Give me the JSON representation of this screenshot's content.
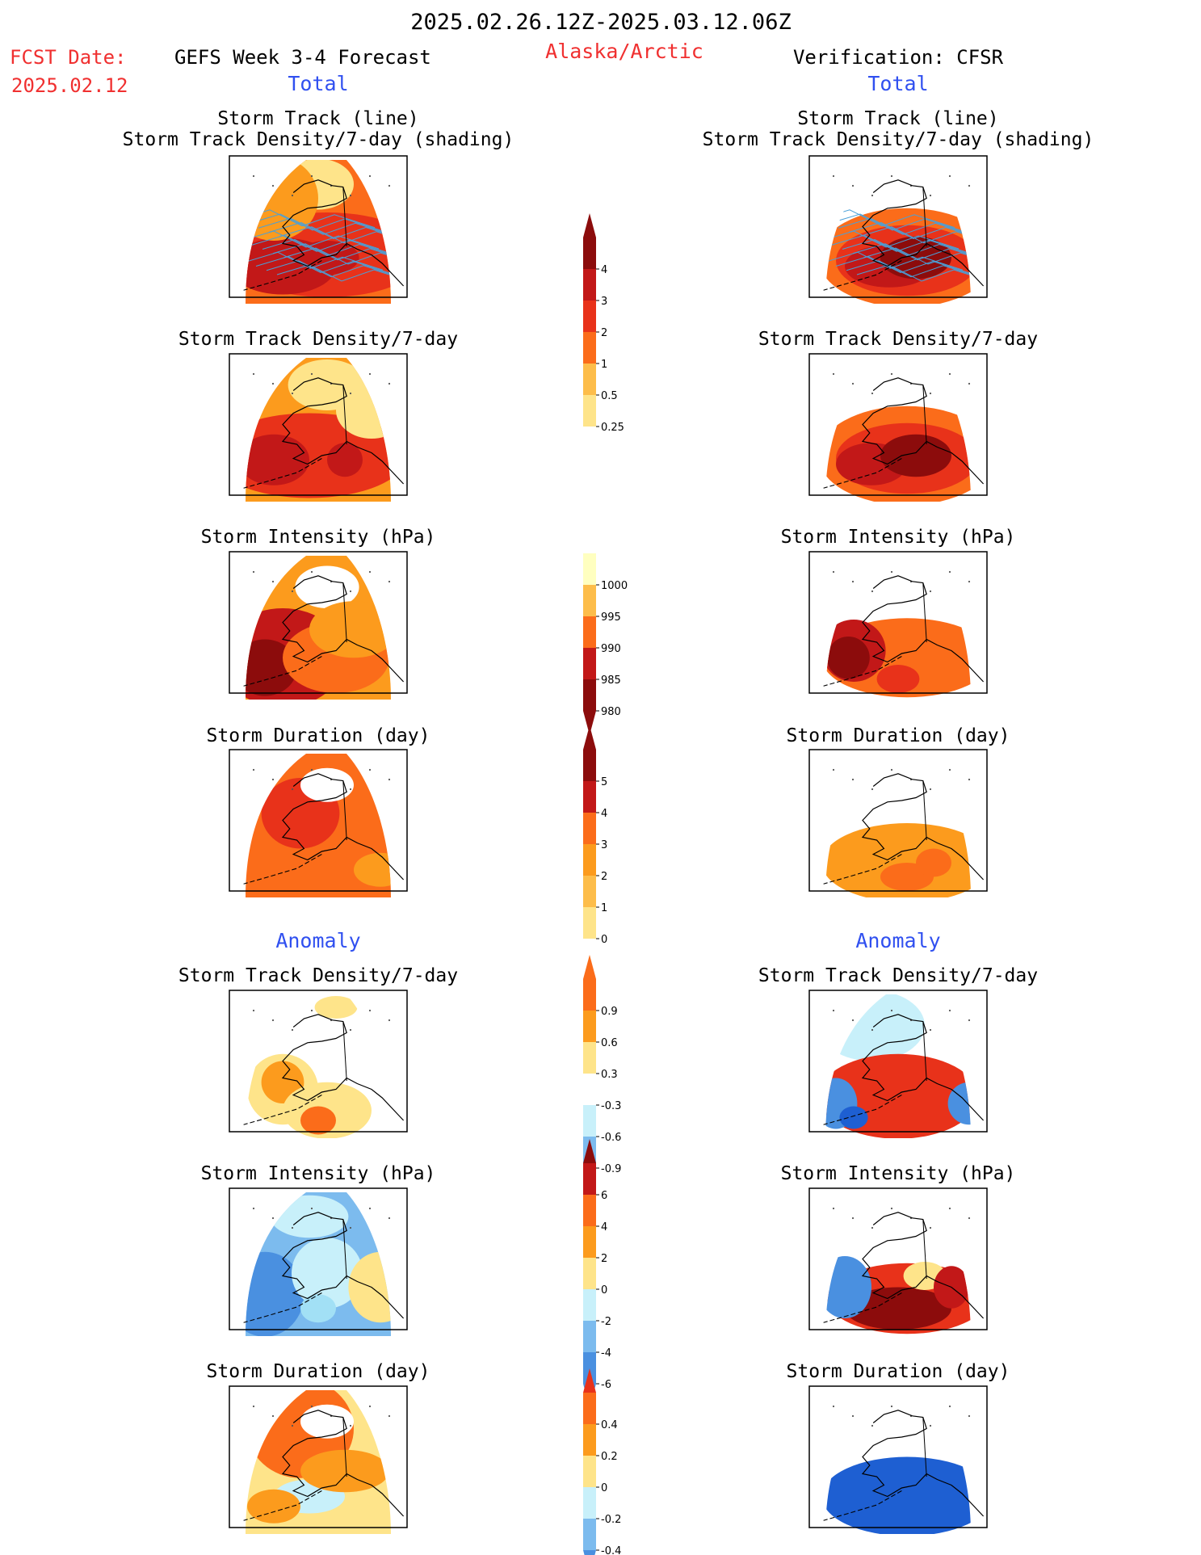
{
  "header": {
    "period": "2025.02.26.12Z-2025.03.12.06Z",
    "fcst_label": "FCST Date:",
    "fcst_date": "2025.02.12",
    "left_title": "GEFS Week 3-4 Forecast",
    "region": "Alaska/Arctic",
    "right_title": "Verification: CFSR",
    "left_total": "Total",
    "right_total": "Total",
    "left_anomaly": "Anomaly",
    "right_anomaly": "Anomaly"
  },
  "titles": {
    "p1_line1": "Storm Track (line)",
    "p1_line2": "Storm Track Density/7-day (shading)",
    "density": "Storm Track Density/7-day",
    "intensity": "Storm Intensity (hPa)",
    "duration": "Storm Duration (day)"
  },
  "colors": {
    "warm": [
      "#ffffc0",
      "#fee48a",
      "#fdbd4a",
      "#fc9b1d",
      "#fb6c1a",
      "#e8321a",
      "#c21818",
      "#8c0c0c"
    ],
    "cool": [
      "#c8f0fa",
      "#a2e0f5",
      "#7cbbee",
      "#4a90e0",
      "#1e5fd2"
    ],
    "track_line": "#4aa0d8"
  },
  "chart_data": [
    {
      "type": "heatmap",
      "title": "Storm Track (line) / Storm Track Density/7-day (shading)",
      "source": "GEFS Week 3-4 Forecast",
      "field": "Total",
      "levels": [
        0.25,
        0.5,
        1,
        2,
        3,
        4
      ],
      "tracks_overlay": true
    },
    {
      "type": "heatmap",
      "title": "Storm Track (line) / Storm Track Density/7-day (shading)",
      "source": "Verification: CFSR",
      "field": "Total",
      "levels": [
        0.25,
        0.5,
        1,
        2,
        3,
        4
      ],
      "tracks_overlay": true
    },
    {
      "type": "heatmap",
      "title": "Storm Track Density/7-day",
      "source": "GEFS Week 3-4 Forecast",
      "field": "Total",
      "levels": [
        0.25,
        0.5,
        1,
        2,
        3,
        4
      ]
    },
    {
      "type": "heatmap",
      "title": "Storm Track Density/7-day",
      "source": "Verification: CFSR",
      "field": "Total",
      "levels": [
        0.25,
        0.5,
        1,
        2,
        3,
        4
      ]
    },
    {
      "type": "heatmap",
      "title": "Storm Intensity (hPa)",
      "source": "GEFS Week 3-4 Forecast",
      "field": "Total",
      "levels": [
        1000,
        995,
        990,
        985,
        980
      ]
    },
    {
      "type": "heatmap",
      "title": "Storm Intensity (hPa)",
      "source": "Verification: CFSR",
      "field": "Total",
      "levels": [
        1000,
        995,
        990,
        985,
        980
      ]
    },
    {
      "type": "heatmap",
      "title": "Storm Duration (day)",
      "source": "GEFS Week 3-4 Forecast",
      "field": "Total",
      "levels": [
        0,
        1,
        2,
        3,
        4,
        5
      ]
    },
    {
      "type": "heatmap",
      "title": "Storm Duration (day)",
      "source": "Verification: CFSR",
      "field": "Total",
      "levels": [
        0,
        1,
        2,
        3,
        4,
        5
      ]
    },
    {
      "type": "heatmap",
      "title": "Storm Track Density/7-day",
      "source": "GEFS Week 3-4 Forecast",
      "field": "Anomaly",
      "levels": [
        -0.9,
        -0.6,
        -0.3,
        0.3,
        0.6,
        0.9
      ]
    },
    {
      "type": "heatmap",
      "title": "Storm Track Density/7-day",
      "source": "Verification: CFSR",
      "field": "Anomaly",
      "levels": [
        -0.9,
        -0.6,
        -0.3,
        0.3,
        0.6,
        0.9
      ]
    },
    {
      "type": "heatmap",
      "title": "Storm Intensity (hPa)",
      "source": "GEFS Week 3-4 Forecast",
      "field": "Anomaly",
      "levels": [
        -6,
        -4,
        -2,
        0,
        2,
        4,
        6
      ]
    },
    {
      "type": "heatmap",
      "title": "Storm Intensity (hPa)",
      "source": "Verification: CFSR",
      "field": "Anomaly",
      "levels": [
        -6,
        -4,
        -2,
        0,
        2,
        4,
        6
      ]
    },
    {
      "type": "heatmap",
      "title": "Storm Duration (day)",
      "source": "GEFS Week 3-4 Forecast",
      "field": "Anomaly",
      "levels": [
        -0.4,
        -0.2,
        0,
        0.2,
        0.4
      ]
    },
    {
      "type": "heatmap",
      "title": "Storm Duration (day)",
      "source": "Verification: CFSR",
      "field": "Anomaly",
      "levels": [
        -0.4,
        -0.2,
        0,
        0.2,
        0.4
      ]
    }
  ],
  "colorbars": {
    "density": [
      "4",
      "3",
      "2",
      "1",
      "0.5",
      "0.25"
    ],
    "intensity": [
      "1000",
      "995",
      "990",
      "985",
      "980"
    ],
    "duration": [
      "5",
      "4",
      "3",
      "2",
      "1",
      "0"
    ],
    "dens_anom": [
      "0.9",
      "0.6",
      "0.3",
      "-0.3",
      "-0.6",
      "-0.9"
    ],
    "int_anom": [
      "6",
      "4",
      "2",
      "0",
      "-2",
      "-4",
      "-6"
    ],
    "dur_anom": [
      "0.4",
      "0.2",
      "0",
      "-0.2",
      "-0.4"
    ]
  }
}
